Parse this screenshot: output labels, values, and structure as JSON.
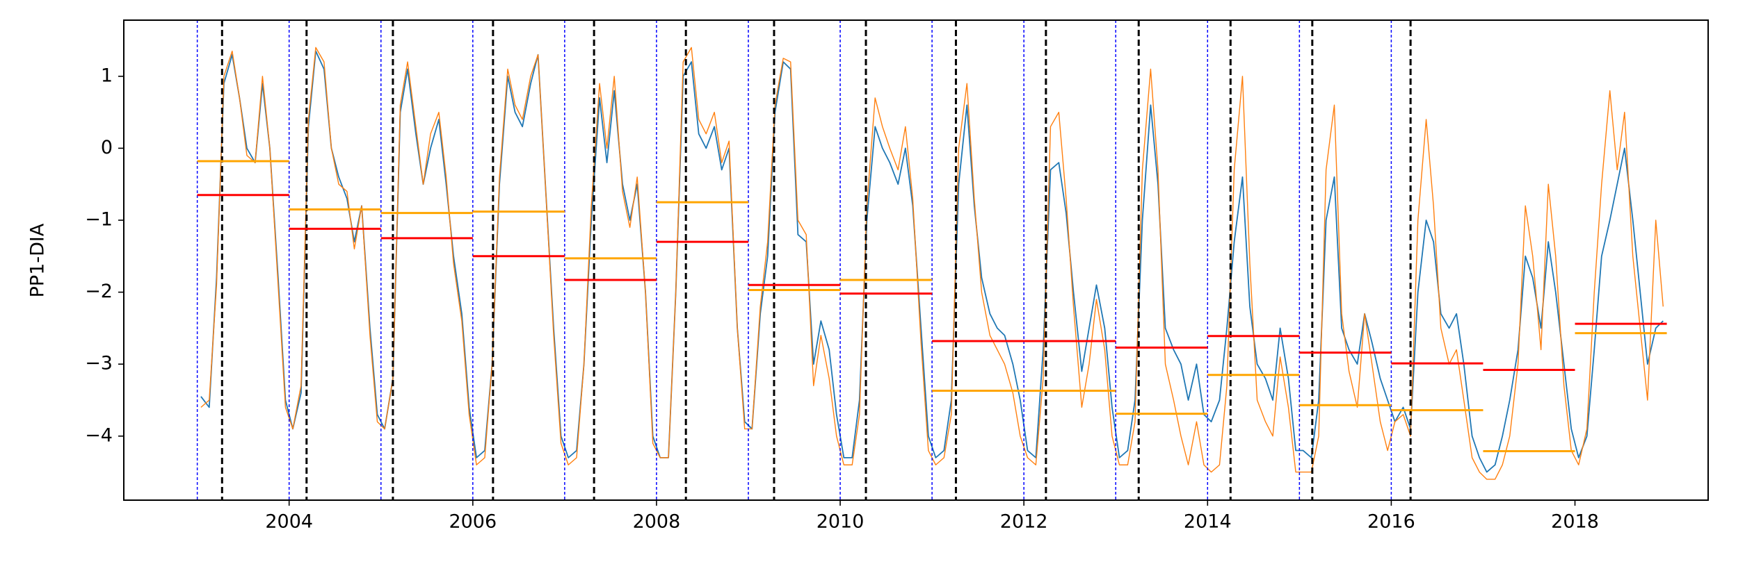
{
  "chart_data": {
    "type": "line",
    "ylabel": "PP1-DIA",
    "xlim": [
      2002.2,
      2019.45
    ],
    "ylim": [
      -4.89,
      1.78
    ],
    "xticks": [
      2004,
      2006,
      2008,
      2010,
      2012,
      2014,
      2016,
      2018
    ],
    "yticks": [
      {
        "value": -4,
        "label": "−4"
      },
      {
        "value": -3,
        "label": "−3"
      },
      {
        "value": -2,
        "label": "−2"
      },
      {
        "value": -1,
        "label": "−1"
      },
      0,
      1
    ],
    "x": [
      2003.04,
      2003.13,
      2003.21,
      2003.29,
      2003.38,
      2003.46,
      2003.54,
      2003.63,
      2003.71,
      2003.79,
      2003.88,
      2003.96,
      2004.04,
      2004.13,
      2004.21,
      2004.29,
      2004.38,
      2004.46,
      2004.54,
      2004.63,
      2004.71,
      2004.79,
      2004.88,
      2004.96,
      2005.04,
      2005.13,
      2005.21,
      2005.29,
      2005.38,
      2005.46,
      2005.54,
      2005.63,
      2005.71,
      2005.79,
      2005.88,
      2005.96,
      2006.04,
      2006.13,
      2006.21,
      2006.29,
      2006.38,
      2006.46,
      2006.54,
      2006.63,
      2006.71,
      2006.79,
      2006.88,
      2006.96,
      2007.04,
      2007.13,
      2007.21,
      2007.29,
      2007.38,
      2007.46,
      2007.54,
      2007.63,
      2007.71,
      2007.79,
      2007.88,
      2007.96,
      2008.04,
      2008.13,
      2008.21,
      2008.29,
      2008.38,
      2008.46,
      2008.54,
      2008.63,
      2008.71,
      2008.79,
      2008.88,
      2008.96,
      2009.04,
      2009.13,
      2009.21,
      2009.29,
      2009.38,
      2009.46,
      2009.54,
      2009.63,
      2009.71,
      2009.79,
      2009.88,
      2009.96,
      2010.04,
      2010.13,
      2010.21,
      2010.29,
      2010.38,
      2010.46,
      2010.54,
      2010.63,
      2010.71,
      2010.79,
      2010.88,
      2010.96,
      2011.04,
      2011.13,
      2011.21,
      2011.29,
      2011.38,
      2011.46,
      2011.54,
      2011.63,
      2011.71,
      2011.79,
      2011.88,
      2011.96,
      2012.04,
      2012.13,
      2012.21,
      2012.29,
      2012.38,
      2012.46,
      2012.54,
      2012.63,
      2012.71,
      2012.79,
      2012.88,
      2012.96,
      2013.04,
      2013.13,
      2013.21,
      2013.29,
      2013.38,
      2013.46,
      2013.54,
      2013.63,
      2013.71,
      2013.79,
      2013.88,
      2013.96,
      2014.04,
      2014.13,
      2014.21,
      2014.29,
      2014.38,
      2014.46,
      2014.54,
      2014.63,
      2014.71,
      2014.79,
      2014.88,
      2014.96,
      2015.04,
      2015.13,
      2015.21,
      2015.29,
      2015.38,
      2015.46,
      2015.54,
      2015.63,
      2015.71,
      2015.79,
      2015.88,
      2015.96,
      2016.04,
      2016.13,
      2016.21,
      2016.29,
      2016.38,
      2016.46,
      2016.54,
      2016.63,
      2016.71,
      2016.79,
      2016.88,
      2016.96,
      2017.04,
      2017.13,
      2017.21,
      2017.29,
      2017.38,
      2017.46,
      2017.54,
      2017.63,
      2017.71,
      2017.79,
      2017.88,
      2017.96,
      2018.04,
      2018.13,
      2018.21,
      2018.29,
      2018.38,
      2018.46,
      2018.54,
      2018.63,
      2018.71,
      2018.79,
      2018.88,
      2018.96
    ],
    "series": [
      {
        "color": "#1f77b4",
        "values": [
          -3.45,
          -3.6,
          -1.8,
          0.9,
          1.3,
          0.7,
          0.0,
          -0.2,
          0.9,
          0.0,
          -1.8,
          -3.5,
          -3.9,
          -3.4,
          0.3,
          1.35,
          1.1,
          0.0,
          -0.4,
          -0.7,
          -1.3,
          -0.8,
          -2.5,
          -3.7,
          -3.9,
          -3.2,
          0.5,
          1.1,
          0.2,
          -0.5,
          0.0,
          0.4,
          -0.5,
          -1.5,
          -2.3,
          -3.6,
          -4.3,
          -4.2,
          -3.0,
          -0.5,
          1.0,
          0.5,
          0.3,
          0.9,
          1.3,
          -0.5,
          -2.5,
          -4.0,
          -4.3,
          -4.2,
          -3.0,
          -1.0,
          0.7,
          -0.2,
          0.8,
          -0.5,
          -1.0,
          -0.5,
          -2.0,
          -4.0,
          -4.3,
          -4.3,
          -2.0,
          1.0,
          1.2,
          0.2,
          0.0,
          0.3,
          -0.3,
          0.0,
          -2.5,
          -3.8,
          -3.9,
          -2.3,
          -1.5,
          0.5,
          1.2,
          1.1,
          -1.2,
          -1.3,
          -3.0,
          -2.4,
          -2.8,
          -3.7,
          -4.3,
          -4.3,
          -3.5,
          -1.0,
          0.3,
          0.0,
          -0.2,
          -0.5,
          0.0,
          -0.8,
          -2.5,
          -4.0,
          -4.3,
          -4.2,
          -3.5,
          -0.5,
          0.6,
          -0.8,
          -1.8,
          -2.3,
          -2.5,
          -2.6,
          -3.0,
          -3.5,
          -4.2,
          -4.3,
          -2.8,
          -0.3,
          -0.2,
          -0.9,
          -2.0,
          -3.1,
          -2.5,
          -1.9,
          -2.5,
          -3.6,
          -4.3,
          -4.2,
          -3.5,
          -1.0,
          0.6,
          -0.5,
          -2.5,
          -2.8,
          -3.0,
          -3.5,
          -3.0,
          -3.7,
          -3.8,
          -3.5,
          -2.5,
          -1.3,
          -0.4,
          -2.2,
          -3.0,
          -3.2,
          -3.5,
          -2.5,
          -3.2,
          -4.2,
          -4.2,
          -4.3,
          -3.5,
          -1.0,
          -0.4,
          -2.5,
          -2.8,
          -3.0,
          -2.3,
          -2.7,
          -3.2,
          -3.5,
          -3.8,
          -3.6,
          -3.9,
          -2.0,
          -1.0,
          -1.3,
          -2.3,
          -2.5,
          -2.3,
          -3.0,
          -4.0,
          -4.3,
          -4.5,
          -4.4,
          -4.0,
          -3.5,
          -2.8,
          -1.5,
          -1.8,
          -2.5,
          -1.3,
          -2.0,
          -3.0,
          -3.9,
          -4.3,
          -4.0,
          -2.8,
          -1.5,
          -1.0,
          -0.5,
          0.0,
          -1.0,
          -2.0,
          -3.0,
          -2.5,
          -2.4
        ]
      },
      {
        "color": "#ff7f0e",
        "values": [
          -3.6,
          -3.5,
          -1.9,
          1.0,
          1.35,
          0.7,
          -0.1,
          -0.2,
          1.0,
          0.0,
          -1.9,
          -3.6,
          -3.9,
          -3.3,
          0.4,
          1.4,
          1.2,
          0.0,
          -0.5,
          -0.6,
          -1.4,
          -0.8,
          -2.6,
          -3.8,
          -3.9,
          -3.2,
          0.6,
          1.2,
          0.3,
          -0.5,
          0.2,
          0.5,
          -0.4,
          -1.6,
          -2.4,
          -3.7,
          -4.4,
          -4.3,
          -3.0,
          -0.4,
          1.1,
          0.6,
          0.4,
          1.0,
          1.3,
          -0.5,
          -2.6,
          -4.1,
          -4.4,
          -4.3,
          -3.0,
          -0.8,
          0.9,
          0.0,
          1.0,
          -0.6,
          -1.1,
          -0.4,
          -2.0,
          -4.1,
          -4.3,
          -4.3,
          -2.0,
          1.2,
          1.4,
          0.4,
          0.2,
          0.5,
          -0.2,
          0.1,
          -2.5,
          -3.9,
          -3.9,
          -2.2,
          -1.3,
          0.6,
          1.25,
          1.2,
          -1.0,
          -1.2,
          -3.3,
          -2.6,
          -3.2,
          -4.0,
          -4.4,
          -4.4,
          -3.7,
          -0.8,
          0.7,
          0.3,
          0.0,
          -0.3,
          0.3,
          -0.7,
          -2.7,
          -4.2,
          -4.4,
          -4.3,
          -3.7,
          0.0,
          0.9,
          -0.7,
          -2.0,
          -2.6,
          -2.8,
          -3.0,
          -3.4,
          -4.0,
          -4.3,
          -4.4,
          -3.2,
          0.3,
          0.5,
          -0.7,
          -2.2,
          -3.6,
          -3.0,
          -2.1,
          -2.8,
          -4.0,
          -4.4,
          -4.4,
          -3.8,
          -0.3,
          1.1,
          -0.3,
          -3.0,
          -3.5,
          -4.0,
          -4.4,
          -3.8,
          -4.4,
          -4.5,
          -4.4,
          -3.3,
          -0.3,
          1.0,
          -1.6,
          -3.5,
          -3.8,
          -4.0,
          -2.9,
          -3.6,
          -4.5,
          -4.5,
          -4.5,
          -4.0,
          -0.3,
          0.6,
          -2.3,
          -3.1,
          -3.6,
          -2.3,
          -3.0,
          -3.8,
          -4.2,
          -3.8,
          -3.7,
          -4.0,
          -1.0,
          0.4,
          -0.8,
          -2.5,
          -3.0,
          -2.8,
          -3.5,
          -4.3,
          -4.5,
          -4.6,
          -4.6,
          -4.4,
          -4.0,
          -3.0,
          -0.8,
          -1.5,
          -2.8,
          -0.5,
          -1.5,
          -3.3,
          -4.2,
          -4.4,
          -3.9,
          -2.0,
          -0.5,
          0.8,
          -0.3,
          0.5,
          -1.5,
          -2.5,
          -3.5,
          -1.0,
          -2.2
        ]
      }
    ],
    "annual_years": [
      2003,
      2004,
      2005,
      2006,
      2007,
      2008,
      2009,
      2010,
      2011,
      2012,
      2013,
      2014,
      2015,
      2016,
      2017,
      2018
    ],
    "annual_means": [
      {
        "color": "#ff0000",
        "values": [
          -0.65,
          -1.12,
          -1.25,
          -1.5,
          -1.83,
          -1.3,
          -1.9,
          -2.02,
          -2.68,
          -2.68,
          -2.77,
          -2.61,
          -2.84,
          -2.99,
          -3.08,
          -2.44
        ]
      },
      {
        "color": "#ffa500",
        "values": [
          -0.18,
          -0.85,
          -0.9,
          -0.88,
          -1.53,
          -0.75,
          -1.97,
          -1.83,
          -3.37,
          -3.37,
          -3.69,
          -3.15,
          -3.57,
          -3.64,
          -4.21,
          -2.57
        ]
      }
    ],
    "vlines": [
      {
        "color": "#0000ff",
        "style": "dotted",
        "x": [
          2003,
          2004,
          2005,
          2006,
          2007,
          2008,
          2009,
          2010,
          2011,
          2012,
          2013,
          2014,
          2015,
          2016
        ]
      },
      {
        "color": "#000000",
        "style": "dashed",
        "x": [
          2003.27,
          2004.19,
          2005.13,
          2006.22,
          2007.32,
          2008.32,
          2009.28,
          2010.28,
          2011.26,
          2012.24,
          2013.25,
          2014.25,
          2015.14,
          2016.21
        ]
      }
    ]
  }
}
